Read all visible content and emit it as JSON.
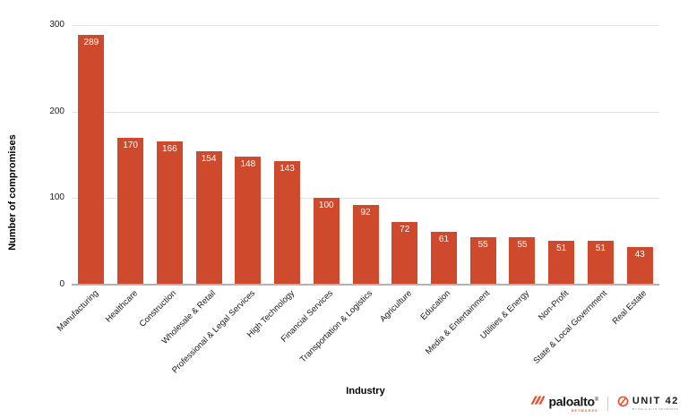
{
  "chart_data": {
    "type": "bar",
    "title": "",
    "xlabel": "Industry",
    "ylabel": "Number of compromises",
    "categories": [
      "Manufacturing",
      "Healthcare",
      "Construction",
      "Wholesale & Retail",
      "Professional & Legal Services",
      "High Technology",
      "Financial Services",
      "Transportation & Logistics",
      "Agriculture",
      "Education",
      "Media & Entertainment",
      "Utilities & Energy",
      "Non-Profit",
      "State & Local Government",
      "Real Estate"
    ],
    "values": [
      289,
      170,
      166,
      154,
      148,
      143,
      100,
      92,
      72,
      61,
      55,
      55,
      51,
      51,
      43
    ],
    "ylim": [
      0,
      300
    ],
    "yticks": [
      0,
      100,
      200,
      300
    ],
    "grid": true,
    "legend": "none",
    "bar_color": "#cf4a2d",
    "value_label_color": "#ffffff"
  },
  "branding": {
    "paloalto_wordmark": "paloalto",
    "paloalto_registered": "®",
    "paloalto_sub": "NETWORKS",
    "unit42_wordmark": "UNIT 42",
    "unit42_sub": "BY PALO ALTO NETWORKS",
    "accent_orange": "#f04e23"
  }
}
